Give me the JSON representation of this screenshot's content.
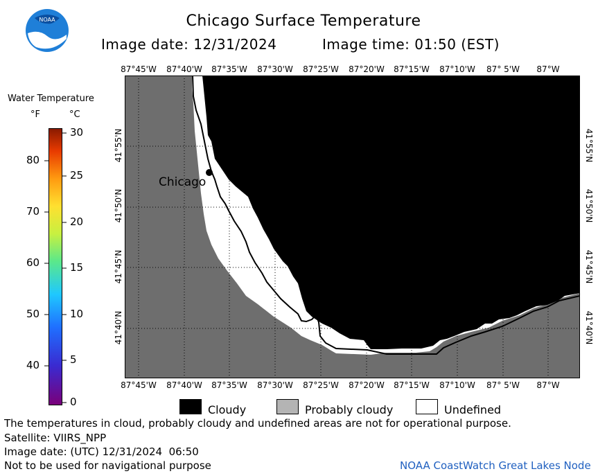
{
  "header": {
    "title": "Chicago Surface Temperature",
    "image_date_label": "Image date: 12/31/2024",
    "image_time_label": "Image time: 01:50 (EST)",
    "logo_text": "NOAA"
  },
  "colorbar": {
    "title": "Water Temperature",
    "unit_f": "°F",
    "unit_c": "°C",
    "f_ticks": [
      "80",
      "70",
      "60",
      "50",
      "40"
    ],
    "c_ticks": [
      "30",
      "25",
      "20",
      "15",
      "10",
      "5",
      "0"
    ]
  },
  "map": {
    "lon_labels": [
      "87°45'W",
      "87°40'W",
      "87°35'W",
      "87°30'W",
      "87°25'W",
      "87°20'W",
      "87°15'W",
      "87°10'W",
      "87° 5'W",
      "87°W"
    ],
    "lat_labels": [
      "41°55'N",
      "41°50'N",
      "41°45'N",
      "41°40'N"
    ],
    "city_label": "Chicago",
    "colors": {
      "land": "#6e6e6e",
      "cloudy": "#000000",
      "probably_cloudy": "#b4b4b4",
      "undefined": "#ffffff"
    }
  },
  "legend": {
    "cloudy": "Cloudy",
    "probably_cloudy": "Probably cloudy",
    "undefined": "Undefined"
  },
  "footer": {
    "disclaimer": "The temperatures in cloud, probably cloudy and undefined areas are not for operational purpose.",
    "satellite": "Satellite: VIIRS_NPP",
    "utc_date": "Image date: (UTC) 12/31/2024  06:50",
    "nav_warning": "Not to be used for navigational purpose",
    "credit": "NOAA CoastWatch Great Lakes Node"
  }
}
